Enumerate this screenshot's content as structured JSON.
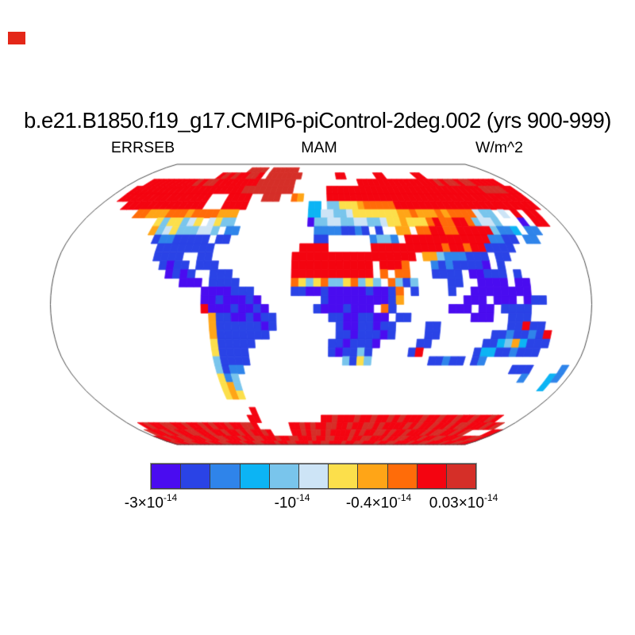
{
  "title": "b.e21.B1850.f19_g17.CMIP6-piControl-2deg.002 (yrs 900-999)",
  "header": {
    "left": "ERRSEB",
    "center": "MAM",
    "right": "W/m^2"
  },
  "chart_data": {
    "type": "heatmap",
    "projection": "robinson",
    "variable": "ERRSEB",
    "season": "MAM",
    "units": "W/m^2",
    "title": "b.e21.B1850.f19_g17.CMIP6-piControl-2deg.002 (yrs 900-999)",
    "legend_position": "bottom",
    "grid_on": false,
    "colorbar": {
      "colors": [
        "#4a0cf0",
        "#2a43e6",
        "#2f84ea",
        "#0cb4f4",
        "#79c5ec",
        "#cde4f6",
        "#fcdf4b",
        "#ffa517",
        "#ff6c09",
        "#f40410",
        "#d52f28"
      ],
      "labels": [
        {
          "base": "-3×10",
          "exp": "-14"
        },
        {
          "base": "-10",
          "exp": "-14"
        },
        {
          "base": "-0.4×10",
          "exp": "-14"
        },
        {
          "base": "0.03×10",
          "exp": "-14"
        }
      ]
    },
    "palette": {
      "1": "#4a0cf0",
      "2": "#2a43e6",
      "3": "#2f84ea",
      "4": "#0cb4f4",
      "5": "#79c5ec",
      "6": "#cde4f6",
      "7": "#fcdf4b",
      "8": "#ffa517",
      "9": "#ff6c09",
      "a": "#f40410",
      "b": "#d52f28"
    },
    "grid": {
      "cols": 72,
      "rows": 36,
      "cell_deg": 5,
      "lat_start": 90,
      "lon_start": -180,
      "ocean_char": ".",
      "rows_data": [
        "........................................................................",
        "....................bbbb.bbbbbb.........................................",
        "...............ababaabba.bbbbbbb.......aa......aa......aa...............",
        "...aaaaaaaaababbaaaaaaaabbbbbbb............aaaaaaaaaaaaaaababbabbaaaaa.",
        "..aaaaaaaaaaaaaaaaaaaabbbbbbbbb......aaaaaaaaaaaaaaaaaaaaaaaaaaaabbbbaa",
        "..aaaaaaaaaaaaaaa...aaaa..bbb..98....aaaaaaaaaaaaaaaaaaaaaaaaaaaaaaaaaa",
        "....aaaaaaaaaaaaa...aaaa..........44.55777899999aaaaaaaaaaaaaaaaaaaaaaa",
        ".......9988899989999888...........44665567777777889888989999655.6.a.aa..",
        "...........7577567.6755...........1556655665567787779a99aa95665...1.aa..",
        "...........8567555665 33...........33332232 2..88.99aa99aaaaa5334.33......",
        "............23322222 22............22......3553.aaaaaaaaaaaa3322.33......",
        ".............22222222............aaaa......aaaaaaaaaa9aa9aa2222.........",
        ".............2222..22...........aaaaaaaaaaaaaaaaa.885333222 22...........",
        "..............2122.222..........aaaaaaaaaaa.aaa9...32322221 2............",
        "...............1212..222........aaaaaaaaaaa.9.99...2222.11222 2..........",
        ".................111.2222.......975795579575 9525....22..1111 11..........",
        "....................1111222.....221121111121129 2....2..11111111.........",
        "....................11211121........21111111128 .......111.111.122 ......",
        "....................a11121121......21112111 92.......111.11.2222......",
        ".....................822112122.......22112211 22........111..222.......",
        ".....................822222212........21122122 ...22.........22a22.......",
        ".....................82222222.........22122212 ...22.......2232232a......",
        ".....................722222..........2212221.....22.......224584222 .....",
        ".....................72222...........212252.....2a.......244223222.....",
        ".....................52222.............5275........22322 23......",
        ".....................5233......................................222....3.",
        ".....................735.........................................3...43.",
        ".....................785.............................................4..",
        ".....................787................................................",
        "........................................................................",
        "........................a...............................................",
        ".......................aa...........aabaaabaabaababaaabaabaabaabaaba....",
        "..abaabbaabaababaabaabba......aababaabbaabaabbabaaaababaabaababbaaabab..",
        ".baababaabbaabaabaababaaba....aababbabaaaababaabbabaabaaababbaabab....aa",
        "aabaabbaaabaabbaaabaabbaaabaabbaaabaabbaaabaabbaaabaabbaaabaabbaaabaabba",
        "abaabbaaabaabbaaabaabbaaabaabbaaabaabbaaabaabbaaabaabbaaabaabbaaabaabbaa"
      ]
    }
  },
  "marker": {
    "note": "small red rectangle, top-left",
    "color": "#e42718"
  }
}
